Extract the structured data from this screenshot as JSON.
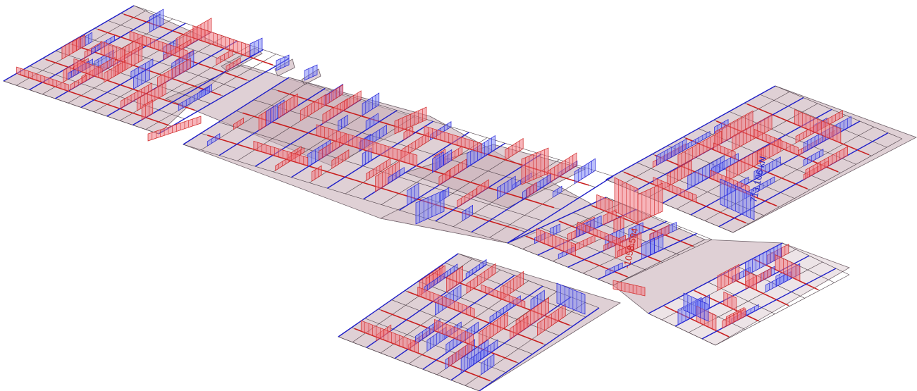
{
  "view": {
    "background": "#ffffff",
    "colors": {
      "slab": "#c4aab2",
      "positive_diagram": "#d02828",
      "negative_diagram": "#2323d8"
    }
  },
  "annotations": [
    {
      "id": "red-value",
      "text": "-1058.594",
      "color": "#c81e1e"
    },
    {
      "id": "blue-value",
      "text": "713.106 kN",
      "color": "#1e1ec8"
    }
  ]
}
